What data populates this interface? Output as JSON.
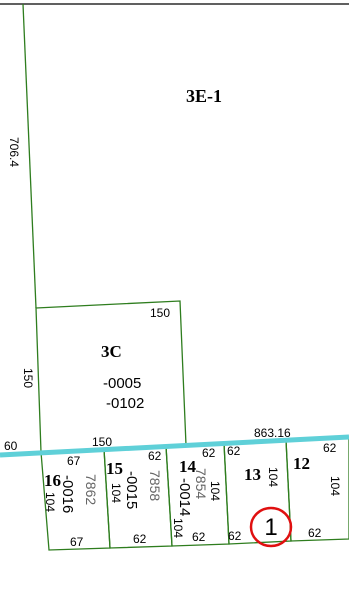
{
  "map": {
    "frontage_line_color": "#5fd0d8",
    "boundary_color": "#2e7d1e",
    "marker_color": "#e01010",
    "marker_label": "1",
    "parcels": {
      "p3e1": {
        "id": "3E-1",
        "dim_west": "706.4"
      },
      "p3c": {
        "id": "3C",
        "sub_a": "-0005",
        "sub_b": "-0102",
        "dim_top": "150",
        "dim_left": "150",
        "dim_bottom": "150"
      },
      "p16": {
        "id": "16",
        "sub": "-0016",
        "house": "7862",
        "dim_top": "67",
        "dim_side": "104",
        "dim_bottom": "67"
      },
      "p15": {
        "id": "15",
        "sub": "-0015",
        "house": "7858",
        "dim_side": "104",
        "dim_top": "62",
        "dim_bottom": "62"
      },
      "p14": {
        "id": "14",
        "sub": "-0014",
        "house": "7854",
        "dim_side": "104",
        "dim_side2": "104",
        "dim_top": "62",
        "dim_bottom": "62"
      },
      "p13": {
        "id": "13",
        "dim_side": "104",
        "dim_top": "62",
        "dim_bottom": "62"
      },
      "p12": {
        "id": "12",
        "dim_side": "104",
        "dim_top": "62",
        "dim_bottom": "62"
      }
    },
    "road": {
      "dim_left": "60",
      "dim_total": "863.16"
    }
  }
}
